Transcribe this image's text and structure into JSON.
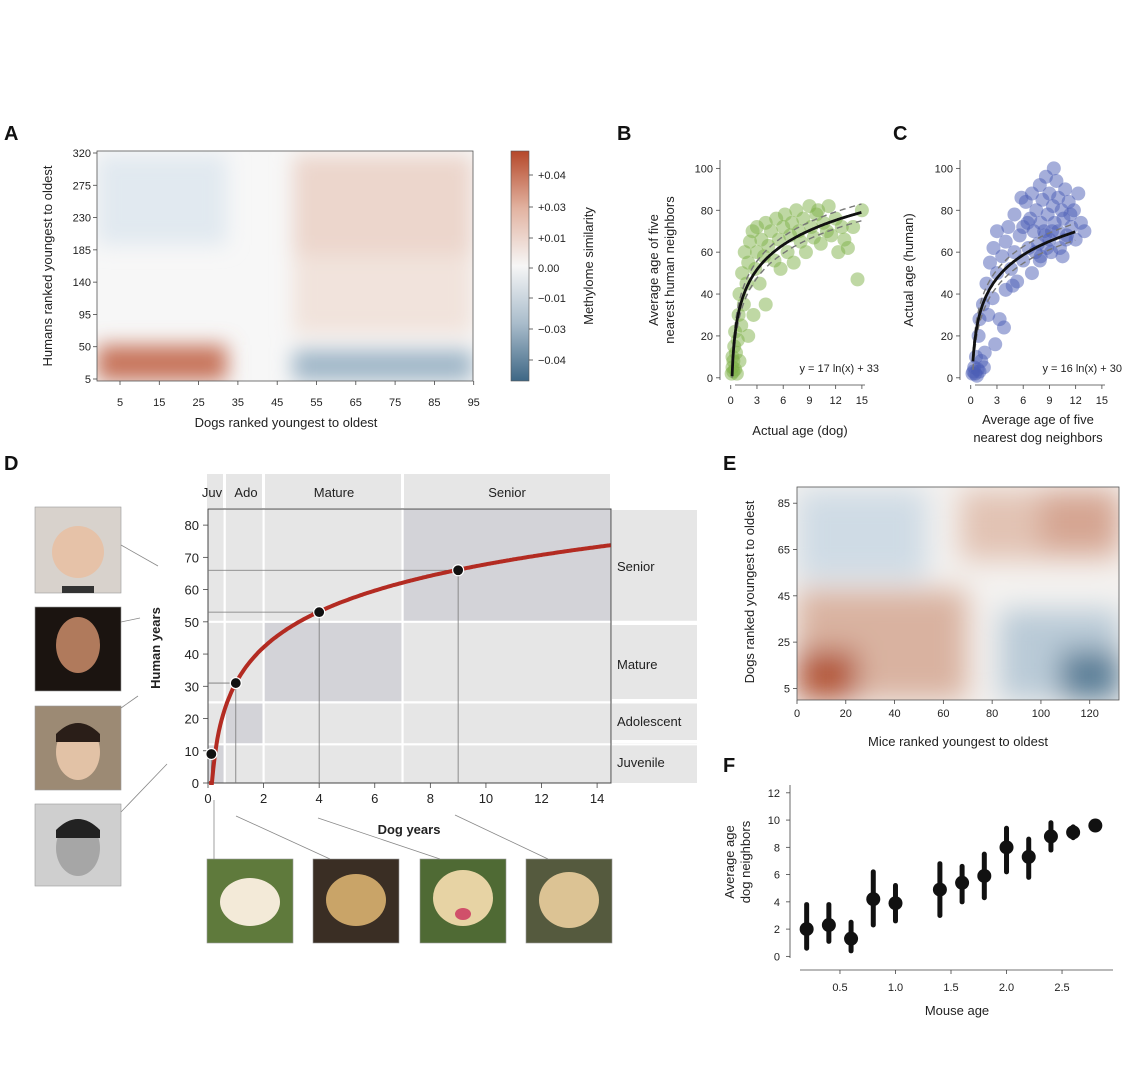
{
  "figure": {
    "panels": {
      "A": "A",
      "B": "B",
      "C": "C",
      "D": "D",
      "E": "E",
      "F": "F"
    }
  },
  "colors": {
    "warm": "#b5482a",
    "cool": "#3e6785",
    "green": "#7fb24a",
    "blue": "#4c5db5",
    "curve_red": "#b32b22",
    "stage_fill": "#e6e6e6",
    "stage_dark": "#d3d3d8",
    "point_black": "#111111"
  },
  "chart_data": [
    {
      "id": "A",
      "type": "heatmap",
      "title": "",
      "xlabel": "Dogs ranked youngest to oldest",
      "ylabel": "Humans ranked youngest to oldest",
      "xticks": [
        "5",
        "15",
        "25",
        "35",
        "45",
        "55",
        "65",
        "75",
        "85",
        "95"
      ],
      "yticks": [
        "320",
        "275",
        "230",
        "185",
        "140",
        "95",
        "50",
        "5"
      ],
      "xlim": [
        0,
        100
      ],
      "ylim": [
        0,
        320
      ],
      "colorbar": {
        "label": "Methylome similarity",
        "ticks": [
          "+0.04",
          "+0.03",
          "+0.01",
          "0.00",
          "−0.01",
          "−0.03",
          "−0.04"
        ]
      },
      "regions": [
        {
          "x": [
            50,
            100
          ],
          "y": [
            190,
            320
          ],
          "value": 0.025
        },
        {
          "x": [
            50,
            100
          ],
          "y": [
            80,
            190
          ],
          "value": 0.012
        },
        {
          "x": [
            50,
            100
          ],
          "y": [
            5,
            50
          ],
          "value": -0.035
        },
        {
          "x": [
            0,
            30
          ],
          "y": [
            5,
            50
          ],
          "value": 0.045
        },
        {
          "x": [
            0,
            30
          ],
          "y": [
            200,
            320
          ],
          "value": -0.012
        }
      ]
    },
    {
      "id": "B",
      "type": "scatter",
      "xlabel": "Actual age (dog)",
      "ylabel": "Average age of five nearest human neighbors",
      "ylabel_lines": [
        "Average age of five",
        "nearest human neighbors"
      ],
      "xticks": [
        "0",
        "3",
        "6",
        "9",
        "12",
        "15"
      ],
      "yticks": [
        "100",
        "80",
        "60",
        "40",
        "20",
        "0"
      ],
      "xlim": [
        -1,
        16.5
      ],
      "ylim": [
        -2,
        104
      ],
      "equation": "y = 17 ln(x) + 33",
      "fit": {
        "a": 17,
        "b": 33
      },
      "points": [
        [
          0.1,
          2
        ],
        [
          0.2,
          5
        ],
        [
          0.2,
          10
        ],
        [
          0.3,
          3
        ],
        [
          0.3,
          8
        ],
        [
          0.4,
          15
        ],
        [
          0.5,
          4
        ],
        [
          0.5,
          22
        ],
        [
          0.6,
          12
        ],
        [
          0.7,
          2
        ],
        [
          0.8,
          18
        ],
        [
          0.9,
          30
        ],
        [
          1,
          8
        ],
        [
          1,
          40
        ],
        [
          1.2,
          25
        ],
        [
          1.3,
          50
        ],
        [
          1.5,
          35
        ],
        [
          1.6,
          60
        ],
        [
          1.8,
          45
        ],
        [
          2,
          20
        ],
        [
          2,
          55
        ],
        [
          2.2,
          65
        ],
        [
          2.5,
          70
        ],
        [
          2.6,
          30
        ],
        [
          2.8,
          52
        ],
        [
          3,
          72
        ],
        [
          3,
          60
        ],
        [
          3.3,
          45
        ],
        [
          3.5,
          66
        ],
        [
          3.8,
          58
        ],
        [
          4,
          35
        ],
        [
          4,
          74
        ],
        [
          4.3,
          63
        ],
        [
          4.6,
          70
        ],
        [
          5,
          56
        ],
        [
          5.2,
          76
        ],
        [
          5.5,
          66
        ],
        [
          5.7,
          52
        ],
        [
          6,
          72
        ],
        [
          6.2,
          78
        ],
        [
          6.5,
          60
        ],
        [
          6.8,
          68
        ],
        [
          7,
          74
        ],
        [
          7.2,
          55
        ],
        [
          7.5,
          80
        ],
        [
          7.8,
          70
        ],
        [
          8,
          65
        ],
        [
          8.3,
          76
        ],
        [
          8.6,
          60
        ],
        [
          9,
          82
        ],
        [
          9.2,
          72
        ],
        [
          9.5,
          67
        ],
        [
          9.8,
          78
        ],
        [
          10,
          80
        ],
        [
          10.3,
          64
        ],
        [
          10.6,
          74
        ],
        [
          11,
          70
        ],
        [
          11.2,
          82
        ],
        [
          11.5,
          68
        ],
        [
          12,
          76
        ],
        [
          12.3,
          60
        ],
        [
          12.7,
          72
        ],
        [
          13,
          66
        ],
        [
          13.4,
          62
        ],
        [
          14,
          72
        ],
        [
          14.5,
          47
        ],
        [
          15,
          80
        ]
      ]
    },
    {
      "id": "C",
      "type": "scatter",
      "xlabel": "Average age of five nearest dog neighbors",
      "xlabel_lines": [
        "Average age of five",
        "nearest dog neighbors"
      ],
      "ylabel": "Actual age (human)",
      "xticks": [
        "0",
        "3",
        "6",
        "9",
        "12",
        "15"
      ],
      "yticks": [
        "100",
        "80",
        "60",
        "40",
        "20",
        "0"
      ],
      "xlim": [
        -1,
        16.5
      ],
      "ylim": [
        -2,
        104
      ],
      "equation": "y = 16 ln(x) + 30",
      "fit": {
        "a": 16,
        "b": 30
      },
      "points": [
        [
          0.2,
          2
        ],
        [
          0.3,
          3
        ],
        [
          0.4,
          5
        ],
        [
          0.5,
          2
        ],
        [
          0.6,
          10
        ],
        [
          0.8,
          4
        ],
        [
          0.9,
          20
        ],
        [
          1,
          3
        ],
        [
          1,
          28
        ],
        [
          1.2,
          8
        ],
        [
          1.4,
          35
        ],
        [
          1.5,
          5
        ],
        [
          1.8,
          45
        ],
        [
          2,
          30
        ],
        [
          2.2,
          55
        ],
        [
          2.5,
          38
        ],
        [
          2.6,
          62
        ],
        [
          3,
          50
        ],
        [
          3,
          70
        ],
        [
          3.3,
          28
        ],
        [
          3.6,
          58
        ],
        [
          4,
          42
        ],
        [
          4,
          65
        ],
        [
          4.3,
          72
        ],
        [
          4.6,
          52
        ],
        [
          5,
          60
        ],
        [
          5,
          78
        ],
        [
          5.3,
          46
        ],
        [
          5.6,
          68
        ],
        [
          6,
          72
        ],
        [
          6,
          56
        ],
        [
          6.3,
          84
        ],
        [
          6.6,
          62
        ],
        [
          6.8,
          76
        ],
        [
          7,
          88
        ],
        [
          7,
          50
        ],
        [
          7.2,
          70
        ],
        [
          7.5,
          80
        ],
        [
          7.7,
          64
        ],
        [
          7.9,
          92
        ],
        [
          8,
          74
        ],
        [
          8,
          58
        ],
        [
          8.2,
          85
        ],
        [
          8.4,
          70
        ],
        [
          8.6,
          96
        ],
        [
          8.8,
          78
        ],
        [
          9,
          66
        ],
        [
          9,
          88
        ],
        [
          9.2,
          60
        ],
        [
          9.4,
          82
        ],
        [
          9.6,
          74
        ],
        [
          9.8,
          94
        ],
        [
          10,
          70
        ],
        [
          10,
          86
        ],
        [
          10.2,
          62
        ],
        [
          10.4,
          80
        ],
        [
          10.6,
          76
        ],
        [
          10.8,
          90
        ],
        [
          11,
          68
        ],
        [
          11.2,
          84
        ],
        [
          11.5,
          72
        ],
        [
          11.8,
          80
        ],
        [
          12,
          66
        ],
        [
          12.3,
          88
        ],
        [
          12.6,
          74
        ],
        [
          13,
          70
        ],
        [
          9.5,
          100
        ],
        [
          8.5,
          68
        ],
        [
          7.4,
          60
        ],
        [
          6.5,
          74
        ],
        [
          5.8,
          86
        ],
        [
          10.5,
          58
        ],
        [
          4.8,
          44
        ],
        [
          3.8,
          24
        ],
        [
          2.8,
          16
        ],
        [
          1.6,
          12
        ],
        [
          0.7,
          1
        ],
        [
          9.3,
          70
        ],
        [
          8.7,
          62
        ],
        [
          11.4,
          78
        ],
        [
          10.9,
          66
        ],
        [
          7.9,
          56
        ]
      ]
    },
    {
      "id": "D",
      "type": "line",
      "xlabel": "Dog years",
      "ylabel": "Human years",
      "xticks": [
        "0",
        "2",
        "4",
        "6",
        "8",
        "10",
        "12",
        "14"
      ],
      "yticks": [
        "80",
        "70",
        "60",
        "50",
        "40",
        "30",
        "20",
        "10",
        "0"
      ],
      "xlim": [
        0,
        14.5
      ],
      "ylim": [
        0,
        85
      ],
      "curve": {
        "a": 16,
        "b": 31,
        "x_start": 0.04
      },
      "highlight_points": [
        [
          0.12,
          9
        ],
        [
          1,
          31
        ],
        [
          4,
          53
        ],
        [
          9,
          66
        ]
      ],
      "dog_stages": [
        "Juv",
        "Ado",
        "Mature",
        "Senior"
      ],
      "human_stages": [
        "Senior",
        "Mature",
        "Adolescent",
        "Juvenile"
      ],
      "dog_stage_bounds": [
        [
          0,
          0.6
        ],
        [
          0.6,
          2
        ],
        [
          2,
          7
        ],
        [
          7,
          14.5
        ]
      ],
      "human_stage_bounds": [
        [
          0,
          12
        ],
        [
          12,
          25
        ],
        [
          25,
          50
        ],
        [
          50,
          85
        ]
      ]
    },
    {
      "id": "E",
      "type": "heatmap",
      "xlabel": "Mice ranked youngest to oldest",
      "ylabel": "Dogs ranked youngest to oldest",
      "xticks": [
        "0",
        "20",
        "40",
        "60",
        "80",
        "100",
        "120"
      ],
      "yticks": [
        "85",
        "65",
        "45",
        "25",
        "5"
      ],
      "xlim": [
        0,
        132
      ],
      "ylim": [
        0,
        92
      ]
    },
    {
      "id": "F",
      "type": "scatter",
      "xlabel": "Mouse age",
      "ylabel": "Average age dog neighbors",
      "ylabel_lines": [
        "Average age",
        "dog neighbors"
      ],
      "xticks": [
        "0.5",
        "1.0",
        "1.5",
        "2.0",
        "2.5"
      ],
      "yticks": [
        "12",
        "10",
        "8",
        "6",
        "4",
        "2",
        "0"
      ],
      "xlim": [
        0.05,
        2.95
      ],
      "ylim": [
        -1,
        12.5
      ],
      "points": [
        {
          "x": 0.2,
          "y": 2.0,
          "lo": 0.6,
          "hi": 3.8
        },
        {
          "x": 0.4,
          "y": 2.3,
          "lo": 1.1,
          "hi": 3.8
        },
        {
          "x": 0.6,
          "y": 1.3,
          "lo": 0.4,
          "hi": 2.5
        },
        {
          "x": 0.8,
          "y": 4.2,
          "lo": 2.3,
          "hi": 6.2
        },
        {
          "x": 1.0,
          "y": 3.9,
          "lo": 2.6,
          "hi": 5.2
        },
        {
          "x": 1.4,
          "y": 4.9,
          "lo": 3.0,
          "hi": 6.8
        },
        {
          "x": 1.6,
          "y": 5.4,
          "lo": 4.0,
          "hi": 6.6
        },
        {
          "x": 1.8,
          "y": 5.9,
          "lo": 4.3,
          "hi": 7.5
        },
        {
          "x": 2.0,
          "y": 8.0,
          "lo": 6.2,
          "hi": 9.4
        },
        {
          "x": 2.2,
          "y": 7.3,
          "lo": 5.8,
          "hi": 8.6
        },
        {
          "x": 2.4,
          "y": 8.8,
          "lo": 7.8,
          "hi": 9.8
        },
        {
          "x": 2.6,
          "y": 9.1,
          "lo": 8.7,
          "hi": 9.5
        },
        {
          "x": 2.8,
          "y": 9.6,
          "lo": 9.3,
          "hi": 9.9
        }
      ]
    }
  ]
}
